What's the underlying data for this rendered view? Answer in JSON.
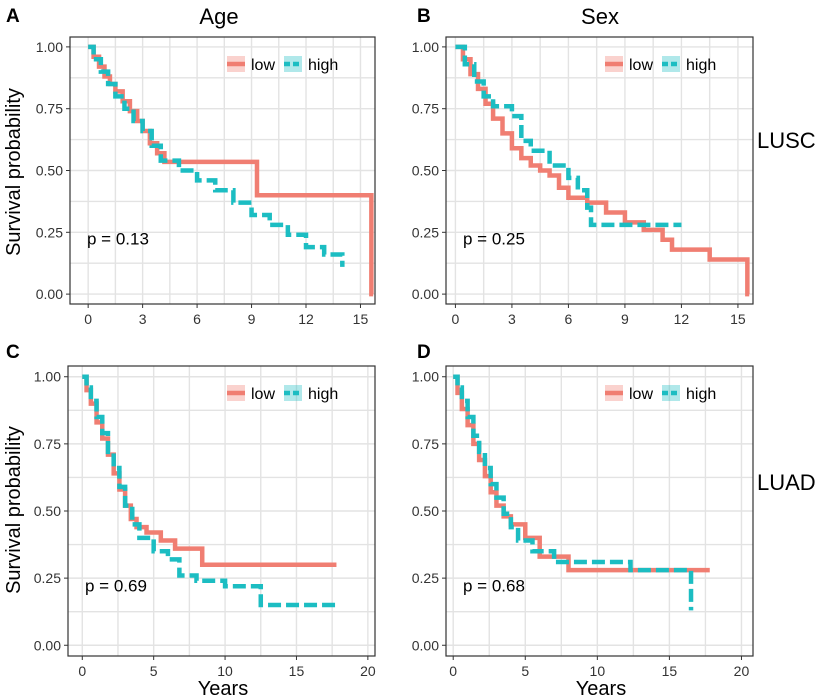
{
  "figure": {
    "column_titles": [
      "Age",
      "Sex"
    ],
    "row_labels": [
      "LUSC",
      "LUAD"
    ],
    "ylabel": "Survival probability",
    "xlabel": "Years"
  },
  "colors": {
    "low": "#F07E72",
    "high": "#1CBDC2",
    "grid": "#E3E3E3",
    "frame": "#333333"
  },
  "chart_data": [
    {
      "type": "line",
      "panel": "A",
      "title": "Age",
      "row": "LUSC",
      "xlim": [
        -1,
        15.8
      ],
      "ylim": [
        -0.04,
        1.04
      ],
      "xticks": [
        0,
        3,
        6,
        9,
        12,
        15
      ],
      "yticks": [
        0,
        0.25,
        0.5,
        0.75,
        1.0
      ],
      "yticklabels": [
        "0.00",
        "0.25",
        "0.50",
        "0.75",
        "1.00"
      ],
      "pvalue": "p = 0.13",
      "legend": [
        "low",
        "high"
      ],
      "series": [
        {
          "name": "low",
          "style": "solid",
          "x": [
            0,
            0.3,
            0.6,
            0.9,
            1.2,
            1.5,
            1.9,
            2.3,
            2.7,
            3.0,
            3.4,
            3.8,
            4.2,
            9.3,
            15.6,
            15.7
          ],
          "y": [
            1.0,
            0.96,
            0.92,
            0.88,
            0.85,
            0.82,
            0.78,
            0.74,
            0.7,
            0.66,
            0.61,
            0.57,
            0.535,
            0.4,
            0.0,
            0.0
          ]
        },
        {
          "name": "high",
          "style": "dashed",
          "x": [
            0,
            0.3,
            0.7,
            1.1,
            1.5,
            2.0,
            2.5,
            3.0,
            3.5,
            4.0,
            5.0,
            6.0,
            7.0,
            8.0,
            9.0,
            10.0,
            11.0,
            12.0,
            13.0,
            14.0
          ],
          "y": [
            1.0,
            0.95,
            0.9,
            0.85,
            0.8,
            0.75,
            0.7,
            0.66,
            0.6,
            0.54,
            0.5,
            0.46,
            0.42,
            0.37,
            0.32,
            0.28,
            0.24,
            0.19,
            0.16,
            0.11
          ]
        }
      ]
    },
    {
      "type": "line",
      "panel": "B",
      "title": "Sex",
      "row": "LUSC",
      "xlim": [
        -0.5,
        15.8
      ],
      "ylim": [
        -0.04,
        1.04
      ],
      "xticks": [
        0,
        3,
        6,
        9,
        12,
        15
      ],
      "yticks": [
        0,
        0.25,
        0.5,
        0.75,
        1.0
      ],
      "yticklabels": [
        "0.00",
        "0.25",
        "0.50",
        "0.75",
        "1.00"
      ],
      "pvalue": "p = 0.25",
      "legend": [
        "low",
        "high"
      ],
      "series": [
        {
          "name": "low",
          "style": "solid",
          "x": [
            0,
            0.4,
            0.8,
            1.2,
            1.6,
            2.0,
            2.5,
            3.0,
            3.5,
            4.0,
            4.5,
            5.0,
            5.5,
            6.0,
            7.0,
            8.0,
            9.0,
            10.0,
            11.0,
            11.5,
            13.5,
            15.5,
            15.6
          ],
          "y": [
            1.0,
            0.95,
            0.89,
            0.83,
            0.77,
            0.71,
            0.65,
            0.59,
            0.55,
            0.52,
            0.5,
            0.48,
            0.43,
            0.39,
            0.37,
            0.33,
            0.29,
            0.26,
            0.22,
            0.18,
            0.14,
            0.0,
            0.0
          ]
        },
        {
          "name": "high",
          "style": "dashed",
          "x": [
            0,
            0.5,
            1.0,
            1.5,
            2.0,
            3.0,
            3.5,
            4.0,
            5.0,
            6.0,
            6.5,
            7.0,
            7.2,
            9.0,
            12.0
          ],
          "y": [
            1.0,
            0.93,
            0.86,
            0.8,
            0.76,
            0.72,
            0.62,
            0.58,
            0.52,
            0.47,
            0.42,
            0.35,
            0.28,
            0.28,
            0.28
          ]
        }
      ]
    },
    {
      "type": "line",
      "panel": "C",
      "title": "",
      "row": "LUAD",
      "xlim": [
        -1,
        20.5
      ],
      "ylim": [
        -0.04,
        1.04
      ],
      "xticks": [
        0,
        5,
        10,
        15,
        20
      ],
      "yticks": [
        0,
        0.25,
        0.5,
        0.75,
        1.0
      ],
      "yticklabels": [
        "0.00",
        "0.25",
        "0.50",
        "0.75",
        "1.00"
      ],
      "pvalue": "p = 0.69",
      "legend": [
        "low",
        "high"
      ],
      "series": [
        {
          "name": "low",
          "style": "solid",
          "x": [
            0,
            0.3,
            0.6,
            1.0,
            1.4,
            1.8,
            2.2,
            2.6,
            3.0,
            3.4,
            3.8,
            4.5,
            5.5,
            6.5,
            8.4,
            17.8
          ],
          "y": [
            1.0,
            0.95,
            0.9,
            0.83,
            0.77,
            0.71,
            0.64,
            0.58,
            0.52,
            0.47,
            0.44,
            0.42,
            0.39,
            0.36,
            0.3,
            0.3
          ]
        },
        {
          "name": "high",
          "style": "dashed",
          "x": [
            0,
            0.3,
            0.6,
            1.0,
            1.4,
            1.8,
            2.2,
            2.6,
            3.0,
            3.5,
            4.0,
            5.0,
            6.0,
            6.8,
            8.0,
            10.0,
            12.5,
            18.0
          ],
          "y": [
            1.0,
            0.96,
            0.91,
            0.85,
            0.79,
            0.72,
            0.66,
            0.59,
            0.52,
            0.45,
            0.4,
            0.35,
            0.32,
            0.26,
            0.24,
            0.22,
            0.15,
            0.15
          ]
        }
      ]
    },
    {
      "type": "line",
      "panel": "D",
      "title": "",
      "row": "LUAD",
      "xlim": [
        -0.5,
        20.8
      ],
      "ylim": [
        -0.04,
        1.04
      ],
      "xticks": [
        0,
        5,
        10,
        15,
        20
      ],
      "yticks": [
        0,
        0.25,
        0.5,
        0.75,
        1.0
      ],
      "yticklabels": [
        "0.00",
        "0.25",
        "0.50",
        "0.75",
        "1.00"
      ],
      "pvalue": "p = 0.68",
      "legend": [
        "low",
        "high"
      ],
      "series": [
        {
          "name": "low",
          "style": "solid",
          "x": [
            0,
            0.3,
            0.6,
            1.0,
            1.4,
            1.8,
            2.2,
            2.6,
            3.0,
            3.5,
            4.0,
            5.0,
            6.0,
            8.0,
            17.8
          ],
          "y": [
            1.0,
            0.94,
            0.88,
            0.82,
            0.75,
            0.69,
            0.63,
            0.57,
            0.52,
            0.48,
            0.45,
            0.4,
            0.33,
            0.28,
            0.28
          ]
        },
        {
          "name": "high",
          "style": "dashed",
          "x": [
            0,
            0.3,
            0.6,
            1.0,
            1.4,
            1.8,
            2.2,
            2.6,
            3.0,
            3.5,
            4.0,
            4.5,
            5.5,
            7.0,
            12.3,
            16.5
          ],
          "y": [
            1.0,
            0.96,
            0.91,
            0.85,
            0.78,
            0.72,
            0.66,
            0.6,
            0.55,
            0.49,
            0.44,
            0.39,
            0.35,
            0.31,
            0.28,
            0.13
          ]
        }
      ]
    }
  ]
}
